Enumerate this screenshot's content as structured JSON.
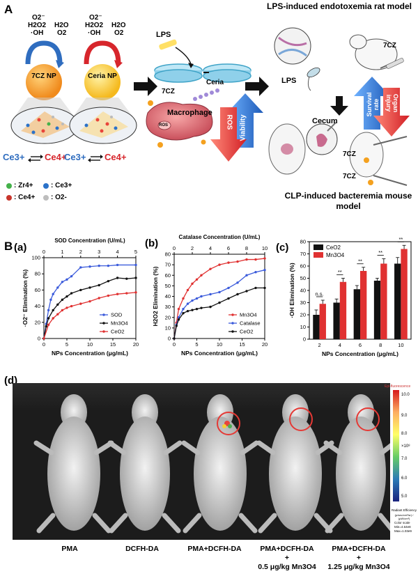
{
  "panelA": {
    "letter": "A",
    "ros_left": {
      "o2": "O2⁻",
      "h2o2": "H2O2",
      "oh": "·OH",
      "h2o": "H2O",
      "o2b": "O2"
    },
    "ros_right": {
      "o2": "O2⁻",
      "h2o2": "H2O2",
      "oh": "·OH",
      "h2o": "H2O",
      "o2b": "O2"
    },
    "np1": "7CZ NP",
    "np2": "Ceria NP",
    "ce_left": {
      "a": "Ce3+",
      "b": "Ce4+"
    },
    "ce_right": {
      "a": "Ce3+",
      "b": "Ce4+"
    },
    "legend": {
      "zr": ": Zr4+",
      "ce3": ": Ce3+",
      "ce4": ": Ce4+",
      "o2": ": O2-"
    },
    "lps": "LPS",
    "ceria": "Ceria",
    "sevenCZ": "7CZ",
    "macrophage": "Macrophage",
    "ros_box": "ROS",
    "ros_arrow": "ROS",
    "viability": "Viability",
    "lps_model_title": "LPS-induced endotoxemia rat model",
    "lps_label": "LPS",
    "rat_7cz": "7CZ",
    "survival": "Survival rate",
    "organ": "Organ injury",
    "cecum": "Cecum",
    "clp_7cz_a": "7CZ",
    "clp_7cz_b": "7CZ",
    "clp_title": "CLP-induced bacteremia mouse model",
    "colors": {
      "blue_arrow": "#2f6dbf",
      "red_arrow": "#d7262c",
      "np_orange": "#f4a11f"
    }
  },
  "panelB": {
    "letter": "B",
    "sub_a": "(a)",
    "sub_b": "(b)",
    "sub_c": "(c)"
  },
  "chart_data": [
    {
      "type": "line",
      "top_axis_label": "SOD Concentration (U/mL)",
      "top_ticks": [
        "0",
        "1",
        "2",
        "3",
        "4",
        "5"
      ],
      "xlabel": "NPs Concentration (μg/mL)",
      "ylabel": "·O2⁻ Elimination (%)",
      "x_ticks": [
        "0",
        "5",
        "10",
        "15",
        "20"
      ],
      "y_ticks": [
        "0",
        "20",
        "40",
        "60",
        "80",
        "100"
      ],
      "xlim": [
        0,
        20
      ],
      "ylim": [
        0,
        100
      ],
      "series": [
        {
          "name": "SOD",
          "color": "#3b5bdb",
          "x": [
            0,
            0.5,
            1,
            1.5,
            2,
            3,
            4,
            5,
            6,
            8,
            10,
            12,
            14,
            16,
            20
          ],
          "values": [
            0,
            18,
            35,
            48,
            55,
            63,
            70,
            73,
            77,
            88,
            89,
            90,
            90,
            91,
            91
          ]
        },
        {
          "name": "Mn3O4",
          "color": "#111111",
          "x": [
            0,
            0.5,
            1,
            2,
            3,
            4,
            5,
            6,
            8,
            10,
            12,
            14,
            16,
            18,
            20
          ],
          "values": [
            0,
            15,
            25,
            35,
            42,
            48,
            52,
            56,
            60,
            63,
            66,
            71,
            75,
            74,
            75
          ]
        },
        {
          "name": "CeO2",
          "color": "#e03131",
          "x": [
            0,
            1,
            2,
            3,
            4,
            5,
            6,
            8,
            10,
            12,
            14,
            16,
            18,
            20
          ],
          "values": [
            0,
            17,
            25,
            30,
            35,
            38,
            40,
            43,
            46,
            50,
            53,
            55,
            56,
            57
          ]
        }
      ],
      "legend": "bottom-right"
    },
    {
      "type": "line",
      "top_axis_label": "Catalase Concentration (U/mL)",
      "top_ticks": [
        "0",
        "2",
        "4",
        "6",
        "8",
        "10"
      ],
      "xlabel": "NPs Concentration (μg/mL)",
      "ylabel": "H2O2 Elimination (%)",
      "x_ticks": [
        "0",
        "5",
        "10",
        "15",
        "20"
      ],
      "y_ticks": [
        "0",
        "10",
        "20",
        "30",
        "40",
        "50",
        "60",
        "70",
        "80"
      ],
      "xlim": [
        0,
        20
      ],
      "ylim": [
        0,
        80
      ],
      "series": [
        {
          "name": "Mn3O4",
          "color": "#e03131",
          "x": [
            0,
            0.5,
            1,
            2,
            3,
            4,
            5,
            6,
            8,
            10,
            12,
            14,
            16,
            18,
            20
          ],
          "values": [
            0,
            15,
            28,
            38,
            46,
            52,
            56,
            60,
            66,
            70,
            72,
            73,
            75,
            75,
            76
          ]
        },
        {
          "name": "Catalase",
          "color": "#3b5bdb",
          "x": [
            0,
            0.5,
            1,
            2,
            3,
            4,
            5,
            6,
            8,
            10,
            12,
            14,
            16,
            18,
            20
          ],
          "values": [
            0,
            13,
            20,
            28,
            33,
            36,
            38,
            40,
            42,
            44,
            48,
            53,
            60,
            63,
            65
          ]
        },
        {
          "name": "CeO2",
          "color": "#111111",
          "x": [
            0,
            0.5,
            1,
            2,
            3,
            4,
            5,
            6,
            8,
            10,
            12,
            14,
            16,
            18,
            20
          ],
          "values": [
            0,
            12,
            18,
            24,
            26,
            27,
            28,
            29,
            30,
            34,
            38,
            42,
            45,
            48,
            48
          ]
        }
      ],
      "legend": "bottom-right"
    },
    {
      "type": "bar",
      "xlabel": "NPs Concentration (μg/mL)",
      "ylabel": "·OH Elimination (%)",
      "categories": [
        "2",
        "4",
        "6",
        "8",
        "10"
      ],
      "y_ticks": [
        "0",
        "10",
        "20",
        "30",
        "40",
        "50",
        "60",
        "70",
        "80"
      ],
      "ylim": [
        0,
        80
      ],
      "series": [
        {
          "name": "CeO2",
          "color": "#111111",
          "values": [
            20,
            30,
            41,
            48,
            62
          ],
          "errors": [
            4,
            3,
            3,
            2,
            5
          ]
        },
        {
          "name": "Mn3O4",
          "color": "#e03131",
          "values": [
            29,
            47,
            56,
            62,
            74
          ],
          "errors": [
            3,
            3,
            3,
            4,
            3
          ]
        }
      ],
      "significance": [
        "n.s.",
        "**",
        "**",
        "**",
        "**"
      ],
      "legend": "top-left"
    }
  ],
  "panelD": {
    "letter": "(d)",
    "scale_title": "Epi-fluorescence",
    "scale_ticks": [
      "10.0",
      "9.0",
      "8.0",
      "7.0",
      "6.0",
      "5.0"
    ],
    "scale_multiplier": "×10⁸",
    "scale_units_a": "Radiant Efficiency",
    "scale_units_b": "(p/sec/cm²/sr) / (μW/cm²)",
    "color_scale": "Color scale",
    "scale_min": "Min=4.64e8",
    "scale_max": "Max=1.03e9",
    "labels": [
      {
        "line1": "PMA",
        "line2": "",
        "line3": ""
      },
      {
        "line1": "DCFH-DA",
        "line2": "",
        "line3": ""
      },
      {
        "line1": "PMA+DCFH-DA",
        "line2": "",
        "line3": ""
      },
      {
        "line1": "PMA+DCFH-DA",
        "line2": "+",
        "line3": "0.5 μg/kg Mn3O4"
      },
      {
        "line1": "PMA+DCFH-DA",
        "line2": "+",
        "line3": "1.25 μg/kg Mn3O4"
      }
    ]
  }
}
